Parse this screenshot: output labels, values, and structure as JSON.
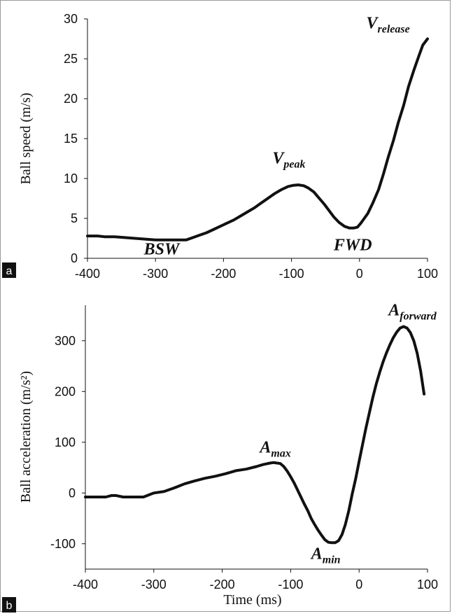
{
  "chart_data": [
    {
      "type": "line",
      "panel_tag": "a",
      "ylabel": "Ball speed (m/s)",
      "xlabel": "",
      "xlim": [
        -400,
        100
      ],
      "ylim": [
        0,
        30
      ],
      "x_ticks": [
        "-400",
        "-300",
        "-200",
        "-100",
        "0",
        "100"
      ],
      "y_ticks": [
        "0",
        "5",
        "10",
        "15",
        "20",
        "25",
        "30"
      ],
      "series": [
        {
          "x": [
            -400,
            -385,
            -375,
            -360,
            -345,
            -330,
            -315,
            -300,
            -285,
            -270,
            -255,
            -245,
            -235,
            -225,
            -215,
            -205,
            -195,
            -185,
            -175,
            -165,
            -155,
            -145,
            -135,
            -125,
            -115,
            -105,
            -97,
            -90,
            -82,
            -75,
            -67,
            -60,
            -52,
            -45,
            -38,
            -30,
            -22,
            -15,
            -8,
            -3,
            2,
            7,
            12,
            20,
            28,
            35,
            42,
            50,
            57,
            65,
            72,
            80,
            87,
            93,
            100
          ],
          "y": [
            2.8,
            2.8,
            2.7,
            2.7,
            2.6,
            2.5,
            2.4,
            2.3,
            2.3,
            2.3,
            2.3,
            2.6,
            2.9,
            3.2,
            3.6,
            4.0,
            4.4,
            4.8,
            5.3,
            5.8,
            6.3,
            6.9,
            7.5,
            8.1,
            8.6,
            9.0,
            9.15,
            9.2,
            9.1,
            8.8,
            8.3,
            7.6,
            6.8,
            6.0,
            5.2,
            4.5,
            4.0,
            3.8,
            3.8,
            3.9,
            4.4,
            5.0,
            5.6,
            7.0,
            8.6,
            10.5,
            12.6,
            14.8,
            17.0,
            19.2,
            21.5,
            23.6,
            25.3,
            26.7,
            27.5
          ]
        }
      ],
      "annotations": [
        {
          "label": "V",
          "sub": "release",
          "x": 10,
          "y": 28.8
        },
        {
          "label": "V",
          "sub": "peak",
          "x": -128,
          "y": 11.9
        },
        {
          "label": "BSW",
          "sub": "",
          "x": -317,
          "y": 0.5
        },
        {
          "label": "FWD",
          "sub": "",
          "x": -38,
          "y": 1.0
        }
      ]
    },
    {
      "type": "line",
      "panel_tag": "b",
      "ylabel": "Ball acceleration (m/s²)",
      "xlabel": "Time (ms)",
      "xlim": [
        -400,
        100
      ],
      "ylim": [
        -150,
        370
      ],
      "x_ticks": [
        "-400",
        "-300",
        "-200",
        "-100",
        "0",
        "100"
      ],
      "y_ticks": [
        "-100",
        "0",
        "100",
        "200",
        "300"
      ],
      "series": [
        {
          "x": [
            -400,
            -385,
            -370,
            -362,
            -355,
            -345,
            -330,
            -315,
            -300,
            -285,
            -270,
            -255,
            -240,
            -225,
            -210,
            -195,
            -180,
            -165,
            -150,
            -140,
            -130,
            -125,
            -120,
            -115,
            -110,
            -105,
            -100,
            -95,
            -90,
            -85,
            -80,
            -75,
            -70,
            -65,
            -60,
            -55,
            -50,
            -45,
            -40,
            -35,
            -30,
            -25,
            -20,
            -15,
            -10,
            -5,
            0,
            5,
            10,
            15,
            20,
            25,
            30,
            35,
            40,
            45,
            50,
            55,
            60,
            65,
            70,
            75,
            80,
            85,
            90,
            95
          ],
          "y": [
            -8,
            -8,
            -8,
            -5,
            -5,
            -8,
            -8,
            -8,
            0,
            3,
            10,
            18,
            24,
            29,
            33,
            38,
            44,
            47,
            52,
            56,
            59,
            60,
            59,
            58,
            52,
            43,
            32,
            20,
            6,
            -8,
            -22,
            -35,
            -50,
            -62,
            -73,
            -83,
            -92,
            -97,
            -98,
            -98,
            -94,
            -82,
            -62,
            -35,
            -2,
            28,
            62,
            95,
            128,
            158,
            188,
            214,
            237,
            258,
            276,
            292,
            306,
            317,
            325,
            328,
            325,
            316,
            300,
            275,
            240,
            195
          ]
        }
      ],
      "annotations": [
        {
          "label": "A",
          "sub": "forward",
          "x": 43,
          "y": 350
        },
        {
          "label": "A",
          "sub": "max",
          "x": -145,
          "y": 80
        },
        {
          "label": "A",
          "sub": "min",
          "x": -70,
          "y": -130
        }
      ]
    }
  ]
}
